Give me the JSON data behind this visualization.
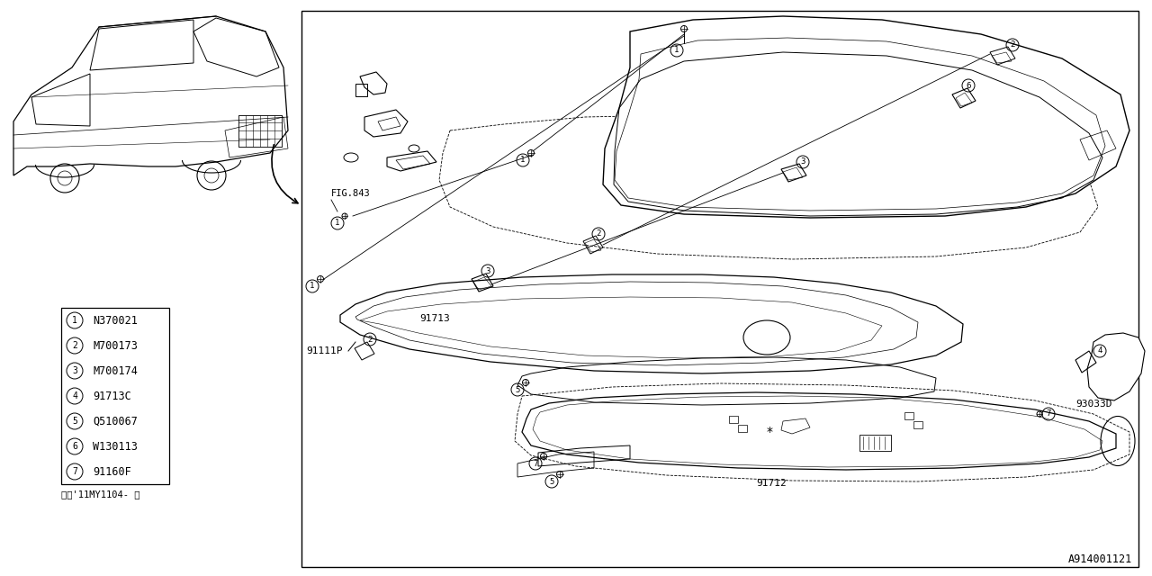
{
  "bg_color": "#ffffff",
  "line_color": "#000000",
  "diagram_id": "A914001121",
  "fig843_label": "FIG.843",
  "label_9111p": "91111P",
  "label_91713": "91713",
  "label_91712": "91712",
  "label_93033d": "93033D",
  "note": "※＜'11MY1104- ＞",
  "parts": [
    {
      "num": 1,
      "code": "N370021"
    },
    {
      "num": 2,
      "code": "M700173"
    },
    {
      "num": 3,
      "code": "M700174"
    },
    {
      "num": 4,
      "code": "91713C"
    },
    {
      "num": 5,
      "code": "Q510067"
    },
    {
      "num": 6,
      "code": "W130113"
    },
    {
      "num": 7,
      "code": "91160F"
    }
  ]
}
